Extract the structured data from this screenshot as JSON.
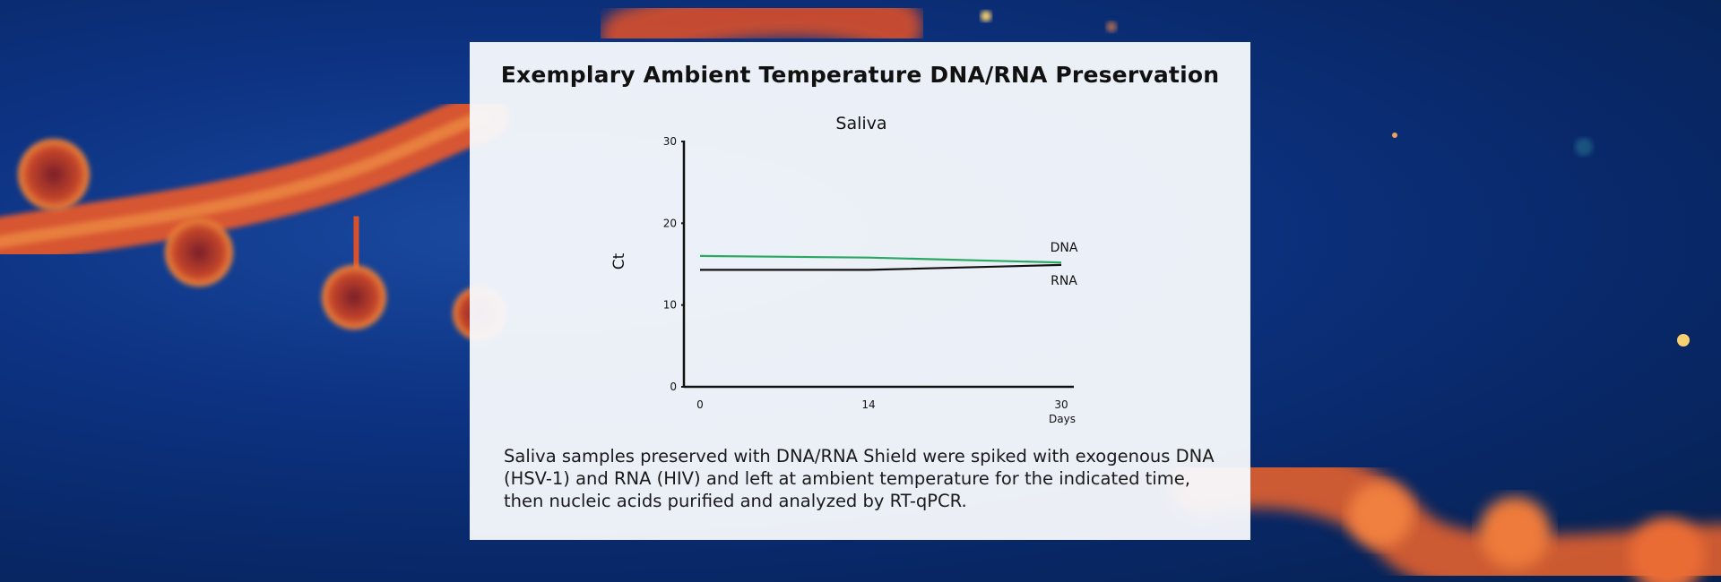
{
  "panel": {
    "title": "Exemplary Ambient Temperature DNA/RNA Preservation",
    "caption": "Saliva samples preserved with DNA/RNA Shield were spiked with exogenous DNA (HSV-1) and RNA (HIV) and left at ambient temperature for the indicated time, then nucleic acids purified and analyzed by RT-qPCR."
  },
  "chart_data": {
    "type": "line",
    "title": "Saliva",
    "xlabel": "Days",
    "ylabel": "Ct",
    "x_ticks": [
      0,
      14,
      30
    ],
    "y_ticks": [
      0,
      10,
      20,
      30
    ],
    "xlim": [
      0,
      30
    ],
    "ylim": [
      0,
      30
    ],
    "grid": false,
    "series": [
      {
        "name": "DNA",
        "x": [
          0,
          14,
          30
        ],
        "y": [
          16.0,
          15.8,
          15.2
        ],
        "color": "#2aa760"
      },
      {
        "name": "RNA",
        "x": [
          0,
          14,
          30
        ],
        "y": [
          14.3,
          14.3,
          14.9
        ],
        "color": "#111111"
      }
    ]
  }
}
